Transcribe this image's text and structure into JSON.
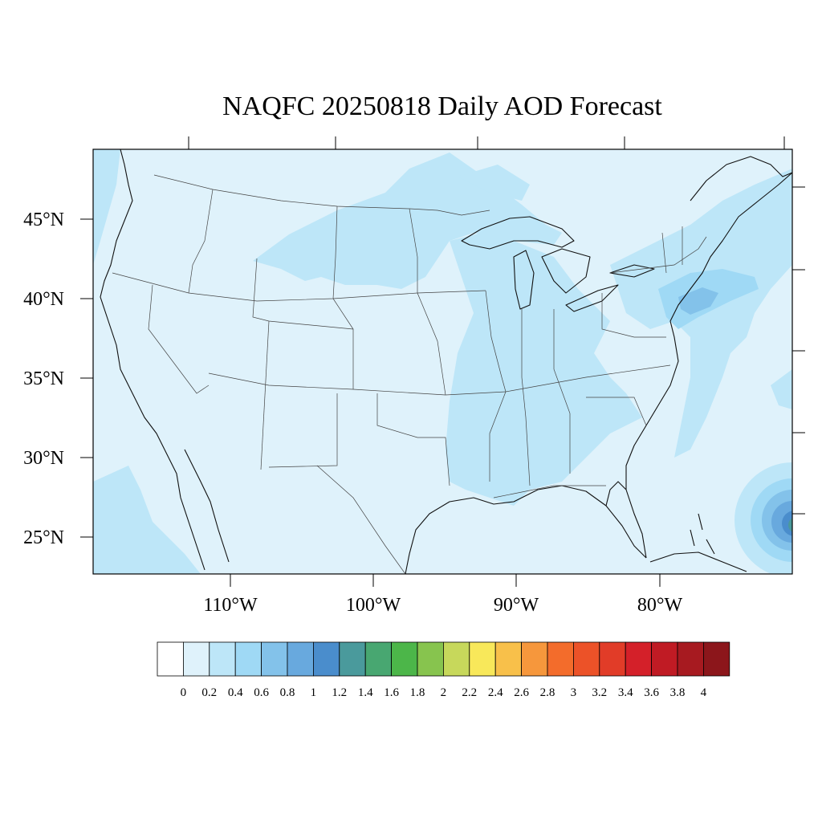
{
  "title": "NAQFC 20250818 Daily AOD Forecast",
  "lat_labels": [
    "45°N",
    "40°N",
    "35°N",
    "30°N",
    "25°N"
  ],
  "lon_labels": [
    "110°W",
    "100°W",
    "90°W",
    "80°W"
  ],
  "colorbar": {
    "labels": [
      "0",
      "0.2",
      "0.4",
      "0.6",
      "0.8",
      "1",
      "1.2",
      "1.4",
      "1.6",
      "1.8",
      "2",
      "2.2",
      "2.4",
      "2.6",
      "2.8",
      "3",
      "3.2",
      "3.4",
      "3.6",
      "3.8",
      "4"
    ],
    "colors": [
      "#ffffff",
      "#dff2fb",
      "#bde6f8",
      "#9fd9f5",
      "#83c2ea",
      "#68a9de",
      "#4a8dcc",
      "#4a9a9c",
      "#48a771",
      "#4cb649",
      "#87c44e",
      "#c7d85b",
      "#f8e85a",
      "#f8c04a",
      "#f6973c",
      "#f36c2b",
      "#ec5228",
      "#e13c28",
      "#d42029",
      "#c01b24",
      "#a71a20",
      "#8c161b"
    ]
  },
  "map": {
    "field_colors": {
      "background": "#dff2fb",
      "level2": "#bde6f8",
      "level3": "#9fd9f5",
      "level4": "#83c2ea",
      "level5": "#68a9de",
      "level6": "#4a8dcc",
      "level7": "#4a9a9c",
      "level8": "#48a771"
    }
  }
}
